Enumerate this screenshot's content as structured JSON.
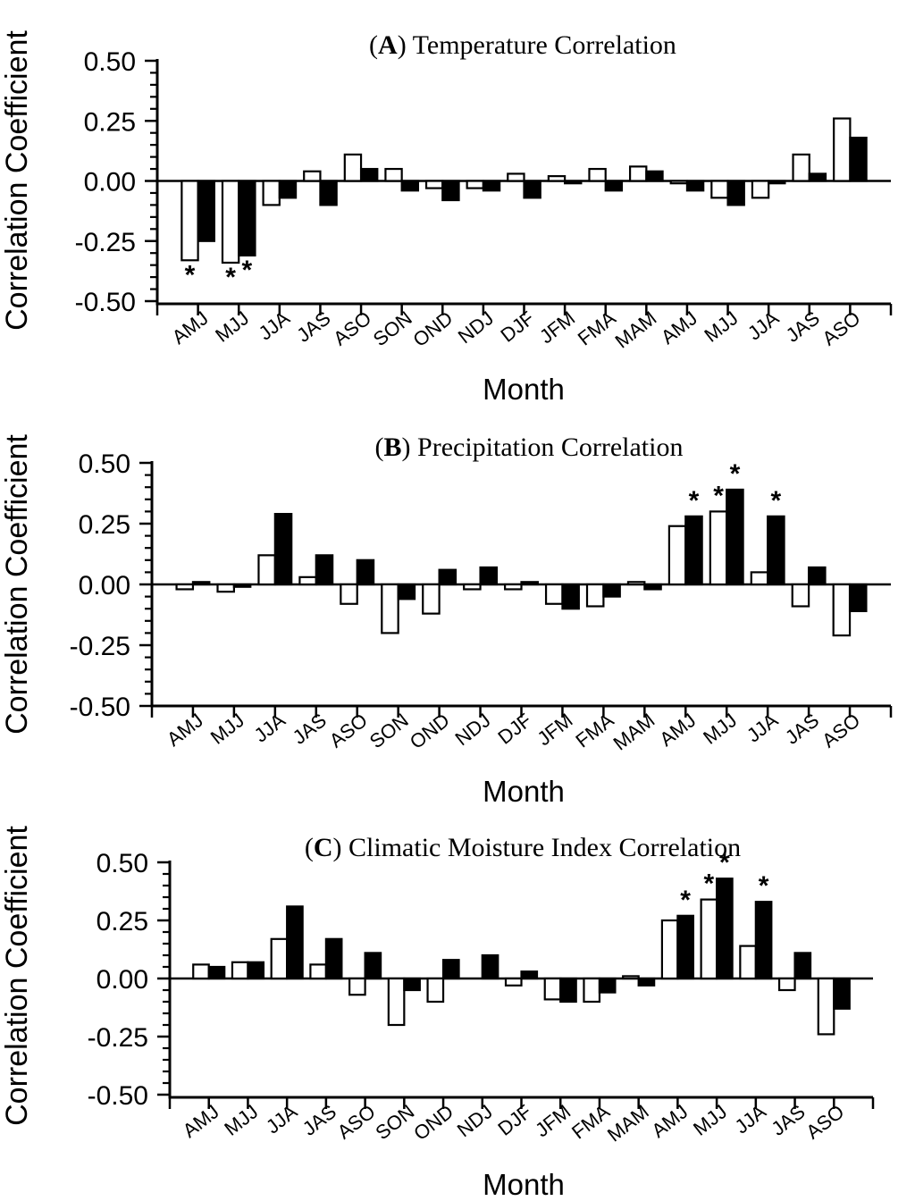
{
  "figure": {
    "background": "#ffffff",
    "axis_color": "#000000",
    "bar_outline_color": "#000000",
    "series_colors": {
      "white": "#ffffff",
      "black": "#000000"
    },
    "significance_marker": "*"
  },
  "chart_data": [
    {
      "type": "bar",
      "panel_label": "A",
      "title_prefix": "(",
      "title_letter": "A",
      "title_suffix": ") Temperature Correlation",
      "xlabel": "Month",
      "ylabel": "Correlation Coefficient",
      "ylim": [
        -0.5,
        0.5
      ],
      "ytick_values": [
        0.5,
        0.25,
        0,
        -0.25,
        -0.5
      ],
      "ytick_labels": [
        "0.50",
        "0.25",
        "0.00",
        "-0.25",
        "-0.50"
      ],
      "yminor_step": 0.05,
      "grid": false,
      "categories": [
        "AMJ",
        "MJJ",
        "JJA",
        "JAS",
        "ASO",
        "SON",
        "OND",
        "NDJ",
        "DJF",
        "JFM",
        "FMA",
        "MAM",
        "AMJ",
        "MJJ",
        "JJA",
        "JAS",
        "ASO"
      ],
      "series": [
        {
          "name": "white",
          "values": [
            -0.33,
            -0.34,
            -0.1,
            0.04,
            0.11,
            0.05,
            -0.03,
            -0.03,
            0.03,
            0.02,
            0.05,
            0.06,
            -0.01,
            -0.07,
            -0.07,
            0.11,
            0.26
          ]
        },
        {
          "name": "black",
          "values": [
            -0.25,
            -0.31,
            -0.07,
            -0.1,
            0.05,
            -0.04,
            -0.08,
            -0.04,
            -0.07,
            -0.01,
            -0.04,
            0.04,
            -0.04,
            -0.1,
            -0.01,
            0.03,
            0.18
          ]
        }
      ],
      "significance": [
        {
          "category_index": 0,
          "series": "white",
          "position": "below"
        },
        {
          "category_index": 1,
          "series": "white",
          "position": "below"
        },
        {
          "category_index": 1,
          "series": "black",
          "position": "below"
        }
      ]
    },
    {
      "type": "bar",
      "panel_label": "B",
      "title_prefix": "(",
      "title_letter": "B",
      "title_suffix": ") Precipitation Correlation",
      "xlabel": "Month",
      "ylabel": "Correlation Coefficient",
      "ylim": [
        -0.5,
        0.5
      ],
      "ytick_values": [
        0.5,
        0.25,
        0,
        -0.25,
        -0.5
      ],
      "ytick_labels": [
        "0.50",
        "0.25",
        "0.00",
        "-0.25",
        "-0.50"
      ],
      "yminor_step": 0.05,
      "grid": false,
      "categories": [
        "AMJ",
        "MJJ",
        "JJA",
        "JAS",
        "ASO",
        "SON",
        "OND",
        "NDJ",
        "DJF",
        "JFM",
        "FMA",
        "MAM",
        "AMJ",
        "MJJ",
        "JJA",
        "JAS",
        "ASO"
      ],
      "series": [
        {
          "name": "white",
          "values": [
            -0.02,
            -0.03,
            0.12,
            0.03,
            -0.08,
            -0.2,
            -0.12,
            -0.02,
            -0.02,
            -0.08,
            -0.09,
            0.01,
            0.24,
            0.3,
            0.05,
            -0.09,
            -0.21
          ]
        },
        {
          "name": "black",
          "values": [
            0.01,
            -0.01,
            0.29,
            0.12,
            0.1,
            -0.06,
            0.06,
            0.07,
            0.01,
            -0.1,
            -0.05,
            -0.02,
            0.28,
            0.39,
            0.28,
            0.07,
            -0.11
          ]
        }
      ],
      "significance": [
        {
          "category_index": 12,
          "series": "black",
          "position": "above"
        },
        {
          "category_index": 13,
          "series": "white",
          "position": "above"
        },
        {
          "category_index": 13,
          "series": "black",
          "position": "above"
        },
        {
          "category_index": 14,
          "series": "black",
          "position": "above"
        }
      ]
    },
    {
      "type": "bar",
      "panel_label": "C",
      "title_prefix": "(",
      "title_letter": "C",
      "title_suffix": ") Climatic Moisture Index Correlation",
      "xlabel": "Month",
      "ylabel": "Correlation Coefficient",
      "ylim": [
        -0.5,
        0.5
      ],
      "ytick_values": [
        0.5,
        0.25,
        0,
        -0.25,
        -0.5
      ],
      "ytick_labels": [
        "0.50",
        "0.25",
        "0.00",
        "-0.25",
        "-0.50"
      ],
      "yminor_step": 0.05,
      "grid": false,
      "categories": [
        "AMJ",
        "MJJ",
        "JJA",
        "JAS",
        "ASO",
        "SON",
        "OND",
        "NDJ",
        "DJF",
        "JFM",
        "FMA",
        "MAM",
        "AMJ",
        "MJJ",
        "JJA",
        "JAS",
        "ASO"
      ],
      "series": [
        {
          "name": "white",
          "values": [
            0.06,
            0.07,
            0.17,
            0.06,
            -0.07,
            -0.2,
            -0.1,
            0.0,
            -0.03,
            -0.09,
            -0.1,
            0.01,
            0.25,
            0.34,
            0.14,
            -0.05,
            -0.24
          ]
        },
        {
          "name": "black",
          "values": [
            0.05,
            0.07,
            0.31,
            0.17,
            0.11,
            -0.05,
            0.08,
            0.1,
            0.03,
            -0.1,
            -0.06,
            -0.03,
            0.27,
            0.43,
            0.33,
            0.11,
            -0.13
          ]
        }
      ],
      "significance": [
        {
          "category_index": 12,
          "series": "black",
          "position": "above"
        },
        {
          "category_index": 13,
          "series": "white",
          "position": "above"
        },
        {
          "category_index": 13,
          "series": "black",
          "position": "above"
        },
        {
          "category_index": 14,
          "series": "black",
          "position": "above"
        }
      ]
    }
  ]
}
